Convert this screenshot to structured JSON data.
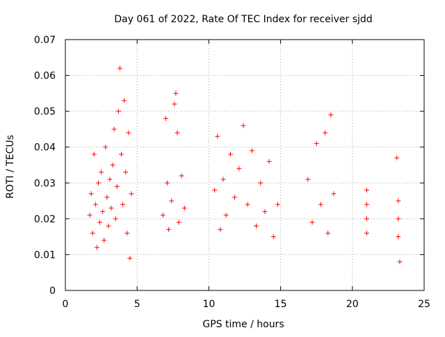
{
  "chart_data": {
    "type": "scatter",
    "title": "Day 061 of 2022, Rate Of TEC Index for receiver sjdd",
    "xlabel": "GPS time / hours",
    "ylabel": "ROTI / TECUs",
    "xlim": [
      0,
      25
    ],
    "ylim": [
      0,
      0.07
    ],
    "x_ticks": [
      "0",
      "5",
      "10",
      "15",
      "20",
      "25"
    ],
    "y_ticks": [
      "0",
      "0.01",
      "0.02",
      "0.03",
      "0.04",
      "0.05",
      "0.06",
      "0.07"
    ],
    "grid": true,
    "marker": "plus",
    "color": "#ff0000",
    "series": [
      {
        "points": [
          [
            1.7,
            0.021
          ],
          [
            1.8,
            0.027
          ],
          [
            1.9,
            0.016
          ],
          [
            2.0,
            0.038
          ],
          [
            2.1,
            0.024
          ],
          [
            2.2,
            0.012
          ],
          [
            2.3,
            0.03
          ],
          [
            2.4,
            0.019
          ],
          [
            2.5,
            0.033
          ],
          [
            2.6,
            0.022
          ],
          [
            2.7,
            0.014
          ],
          [
            2.8,
            0.04
          ],
          [
            2.9,
            0.026
          ],
          [
            3.0,
            0.018
          ],
          [
            3.1,
            0.031
          ],
          [
            3.2,
            0.023
          ],
          [
            3.3,
            0.035
          ],
          [
            3.4,
            0.045
          ],
          [
            3.5,
            0.02
          ],
          [
            3.6,
            0.029
          ],
          [
            3.7,
            0.05
          ],
          [
            3.8,
            0.062
          ],
          [
            3.9,
            0.038
          ],
          [
            4.0,
            0.024
          ],
          [
            4.1,
            0.053
          ],
          [
            4.2,
            0.033
          ],
          [
            4.3,
            0.016
          ],
          [
            4.4,
            0.044
          ],
          [
            4.5,
            0.009
          ],
          [
            4.6,
            0.027
          ],
          [
            6.8,
            0.021
          ],
          [
            7.0,
            0.048
          ],
          [
            7.1,
            0.03
          ],
          [
            7.2,
            0.017
          ],
          [
            7.4,
            0.025
          ],
          [
            7.6,
            0.052
          ],
          [
            7.7,
            0.055
          ],
          [
            7.8,
            0.044
          ],
          [
            7.9,
            0.019
          ],
          [
            8.1,
            0.032
          ],
          [
            8.3,
            0.023
          ],
          [
            10.4,
            0.028
          ],
          [
            10.6,
            0.043
          ],
          [
            10.8,
            0.017
          ],
          [
            11.0,
            0.031
          ],
          [
            11.2,
            0.021
          ],
          [
            11.5,
            0.038
          ],
          [
            11.8,
            0.026
          ],
          [
            12.1,
            0.034
          ],
          [
            12.4,
            0.046
          ],
          [
            12.7,
            0.024
          ],
          [
            13.0,
            0.039
          ],
          [
            13.3,
            0.018
          ],
          [
            13.6,
            0.03
          ],
          [
            13.9,
            0.022
          ],
          [
            14.2,
            0.036
          ],
          [
            14.5,
            0.015
          ],
          [
            14.8,
            0.024
          ],
          [
            16.9,
            0.031
          ],
          [
            17.2,
            0.019
          ],
          [
            17.5,
            0.041
          ],
          [
            17.8,
            0.024
          ],
          [
            18.1,
            0.044
          ],
          [
            18.3,
            0.016
          ],
          [
            18.5,
            0.049
          ],
          [
            18.7,
            0.027
          ],
          [
            21.0,
            0.028
          ],
          [
            21.0,
            0.024
          ],
          [
            21.0,
            0.02
          ],
          [
            21.0,
            0.016
          ],
          [
            23.1,
            0.037
          ],
          [
            23.2,
            0.025
          ],
          [
            23.2,
            0.02
          ],
          [
            23.2,
            0.015
          ],
          [
            23.3,
            0.008
          ]
        ]
      }
    ]
  }
}
